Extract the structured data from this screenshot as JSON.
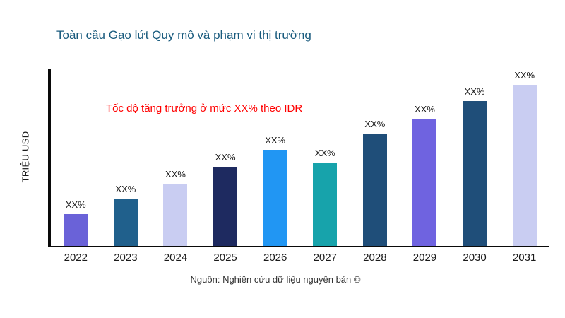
{
  "page": {
    "title": "Toàn cầu Gạo lứt Quy mô và phạm vi thị trường",
    "source": "Nguồn: Nghiên cứu dữ liệu nguyên bản ©"
  },
  "chart_data": {
    "type": "bar",
    "title": "Toàn cầu Gạo lứt Quy mô và phạm vi thị trường",
    "xlabel": "",
    "ylabel": "TRIỆU USD",
    "annotation": "Tốc độ tăng trưởng ở mức XX% theo IDR",
    "annotation_color": "#ff0000",
    "categories": [
      "2022",
      "2023",
      "2024",
      "2025",
      "2026",
      "2027",
      "2028",
      "2029",
      "2030",
      "2031"
    ],
    "values": [
      45,
      67,
      88,
      112,
      136,
      118,
      159,
      180,
      205,
      228
    ],
    "value_labels": [
      "XX%",
      "XX%",
      "XX%",
      "XX%",
      "XX%",
      "XX%",
      "XX%",
      "XX%",
      "XX%",
      "XX%"
    ],
    "bar_colors": [
      "#6a62d8",
      "#20608c",
      "#c9cdf2",
      "#1e2a60",
      "#2196f3",
      "#17a3ab",
      "#1f4e79",
      "#6f63e0",
      "#1f4e79",
      "#c9cdf2"
    ],
    "ylim": [
      0,
      250
    ],
    "grid": false,
    "legend": false
  },
  "colors": {
    "title": "#185a7d",
    "axis": "#0a0a0a",
    "text": "#1a1a1a"
  }
}
